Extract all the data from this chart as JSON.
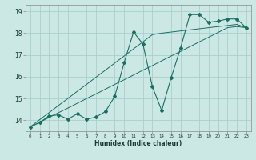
{
  "xlabel": "Humidex (Indice chaleur)",
  "ylabel": "",
  "background_color": "#cce8e4",
  "grid_color": "#aacfcb",
  "line_color": "#1a6e62",
  "x_data": [
    0,
    1,
    2,
    3,
    4,
    5,
    6,
    7,
    8,
    9,
    10,
    11,
    12,
    13,
    14,
    15,
    16,
    17,
    18,
    19,
    20,
    21,
    22,
    23
  ],
  "y_curve": [
    13.7,
    13.9,
    14.2,
    14.25,
    14.05,
    14.3,
    14.05,
    14.15,
    14.4,
    15.1,
    16.65,
    18.05,
    17.5,
    15.55,
    14.45,
    15.95,
    17.3,
    18.85,
    18.85,
    18.5,
    18.55,
    18.65,
    18.65,
    18.25
  ],
  "y_linear1": [
    13.7,
    14.03,
    14.35,
    14.68,
    15.0,
    15.33,
    15.65,
    15.98,
    16.3,
    16.63,
    16.95,
    17.28,
    17.6,
    17.93,
    18.0,
    18.05,
    18.1,
    18.15,
    18.2,
    18.25,
    18.3,
    18.35,
    18.4,
    18.25
  ],
  "y_linear2": [
    13.7,
    13.91,
    14.13,
    14.35,
    14.56,
    14.78,
    15.0,
    15.21,
    15.43,
    15.65,
    15.86,
    16.08,
    16.3,
    16.51,
    16.73,
    16.95,
    17.16,
    17.38,
    17.6,
    17.81,
    18.03,
    18.25,
    18.3,
    18.25
  ],
  "ylim": [
    13.5,
    19.3
  ],
  "xlim": [
    -0.5,
    23.5
  ],
  "yticks": [
    14,
    15,
    16,
    17,
    18,
    19
  ],
  "xticks": [
    0,
    1,
    2,
    3,
    4,
    5,
    6,
    7,
    8,
    9,
    10,
    11,
    12,
    13,
    14,
    15,
    16,
    17,
    18,
    19,
    20,
    21,
    22,
    23
  ]
}
